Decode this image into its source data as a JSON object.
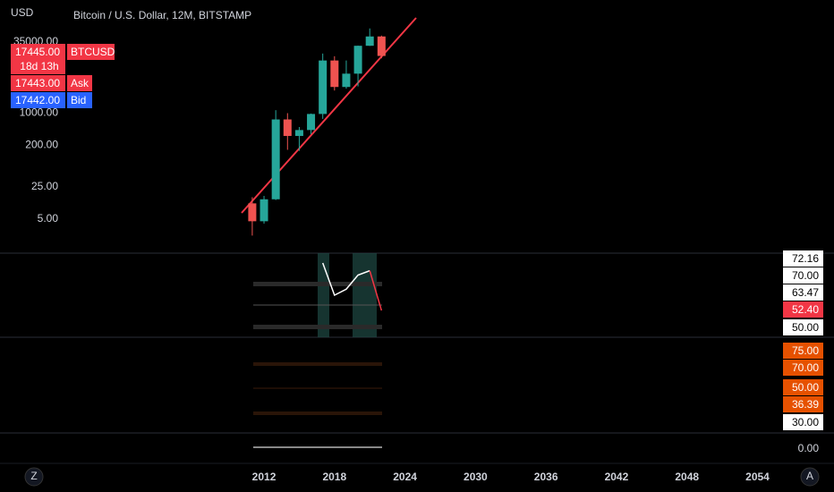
{
  "chart_data": {
    "type": "candlestick",
    "title": "Bitcoin / U.S. Dollar, 12M, BITSTAMP",
    "y_label": "USD",
    "x": [
      2011,
      2012,
      2013,
      2014,
      2015,
      2016,
      2017,
      2018,
      2019,
      2020,
      2021,
      2022
    ],
    "open": [
      11,
      4.5,
      13.5,
      730,
      320,
      430,
      960,
      13900,
      3700,
      7200,
      29000,
      46200
    ],
    "high": [
      15,
      16,
      1160,
      1000,
      500,
      980,
      19670,
      17200,
      13900,
      29300,
      69000,
      48200
    ],
    "low": [
      2.2,
      4,
      13,
      160,
      152,
      350,
      750,
      3100,
      3400,
      3800,
      28800,
      15500
    ],
    "close": [
      4.5,
      13.5,
      730,
      320,
      430,
      960,
      13900,
      3700,
      7200,
      29000,
      46200,
      17445
    ],
    "up_color": "#26a69a",
    "down_color": "#ef5350",
    "log_y": true,
    "ylim": [
      1.045,
      285800
    ],
    "yticks": [
      {
        "value": 35000,
        "label": "35000.00"
      },
      {
        "value": 1000,
        "label": "1000.00"
      },
      {
        "value": 200,
        "label": "200.00"
      },
      {
        "value": 25,
        "label": "25.00"
      },
      {
        "value": 5,
        "label": "5.00"
      }
    ],
    "xlim": [
      1989.53,
      2055.79
    ],
    "xticks": [
      2012,
      2018,
      2024,
      2030,
      2036,
      2042,
      2048,
      2054
    ]
  },
  "price_tags": [
    {
      "price": "17445.00",
      "tag": "BTCUSD",
      "countdown": "18d 13h"
    },
    {
      "price": "17443.00",
      "tag": "Ask"
    },
    {
      "price": "17442.00",
      "tag": "Bid"
    }
  ],
  "rsi": {
    "x": [
      2017,
      2018,
      2019,
      2020,
      2021,
      2022
    ],
    "values": [
      76,
      60,
      63,
      70,
      72.16,
      52.4
    ],
    "ylim": [
      40,
      80
    ],
    "labels": [
      "72.16",
      "70.00",
      "63.47",
      "52.40",
      "50.00"
    ]
  },
  "stoch": {
    "labels": [
      "75.00",
      "70.00",
      "50.00",
      "36.39",
      "30.00"
    ]
  },
  "volume": {
    "labels": [
      "0.00"
    ]
  },
  "buttons": {
    "left": "Z",
    "right": "A"
  }
}
